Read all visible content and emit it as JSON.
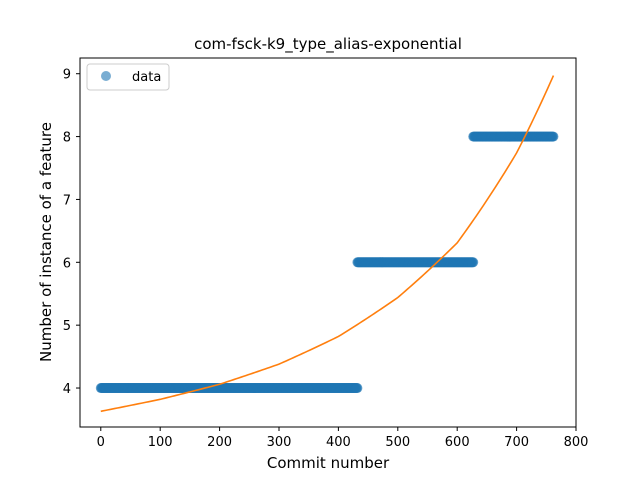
{
  "chart_data": {
    "type": "scatter",
    "title": "com-fsck-k9_type_alias-exponential",
    "xlabel": "Commit number",
    "ylabel": "Number of instance of a feature",
    "xlim": [
      -35,
      800
    ],
    "ylim": [
      3.38,
      9.25
    ],
    "xticks": [
      0,
      100,
      200,
      300,
      400,
      500,
      600,
      700,
      800
    ],
    "yticks": [
      4,
      5,
      6,
      7,
      8,
      9
    ],
    "grid": false,
    "legend": {
      "placement": "top-left",
      "entries": [
        "data"
      ]
    },
    "series": [
      {
        "name": "data",
        "kind": "scatter",
        "color": "#1f77b4",
        "segments": [
          {
            "x_start": 0,
            "x_end": 432,
            "y": 4
          },
          {
            "x_start": 432,
            "x_end": 627,
            "y": 6
          },
          {
            "x_start": 627,
            "x_end": 762,
            "y": 8
          }
        ]
      },
      {
        "name": "",
        "kind": "line",
        "color": "#ff7f0e",
        "model": "exponential",
        "x": [
          0,
          100,
          200,
          300,
          400,
          500,
          600,
          700,
          762
        ],
        "y": [
          3.63,
          3.82,
          4.06,
          4.38,
          4.82,
          5.44,
          6.31,
          7.74,
          8.97
        ]
      }
    ]
  }
}
